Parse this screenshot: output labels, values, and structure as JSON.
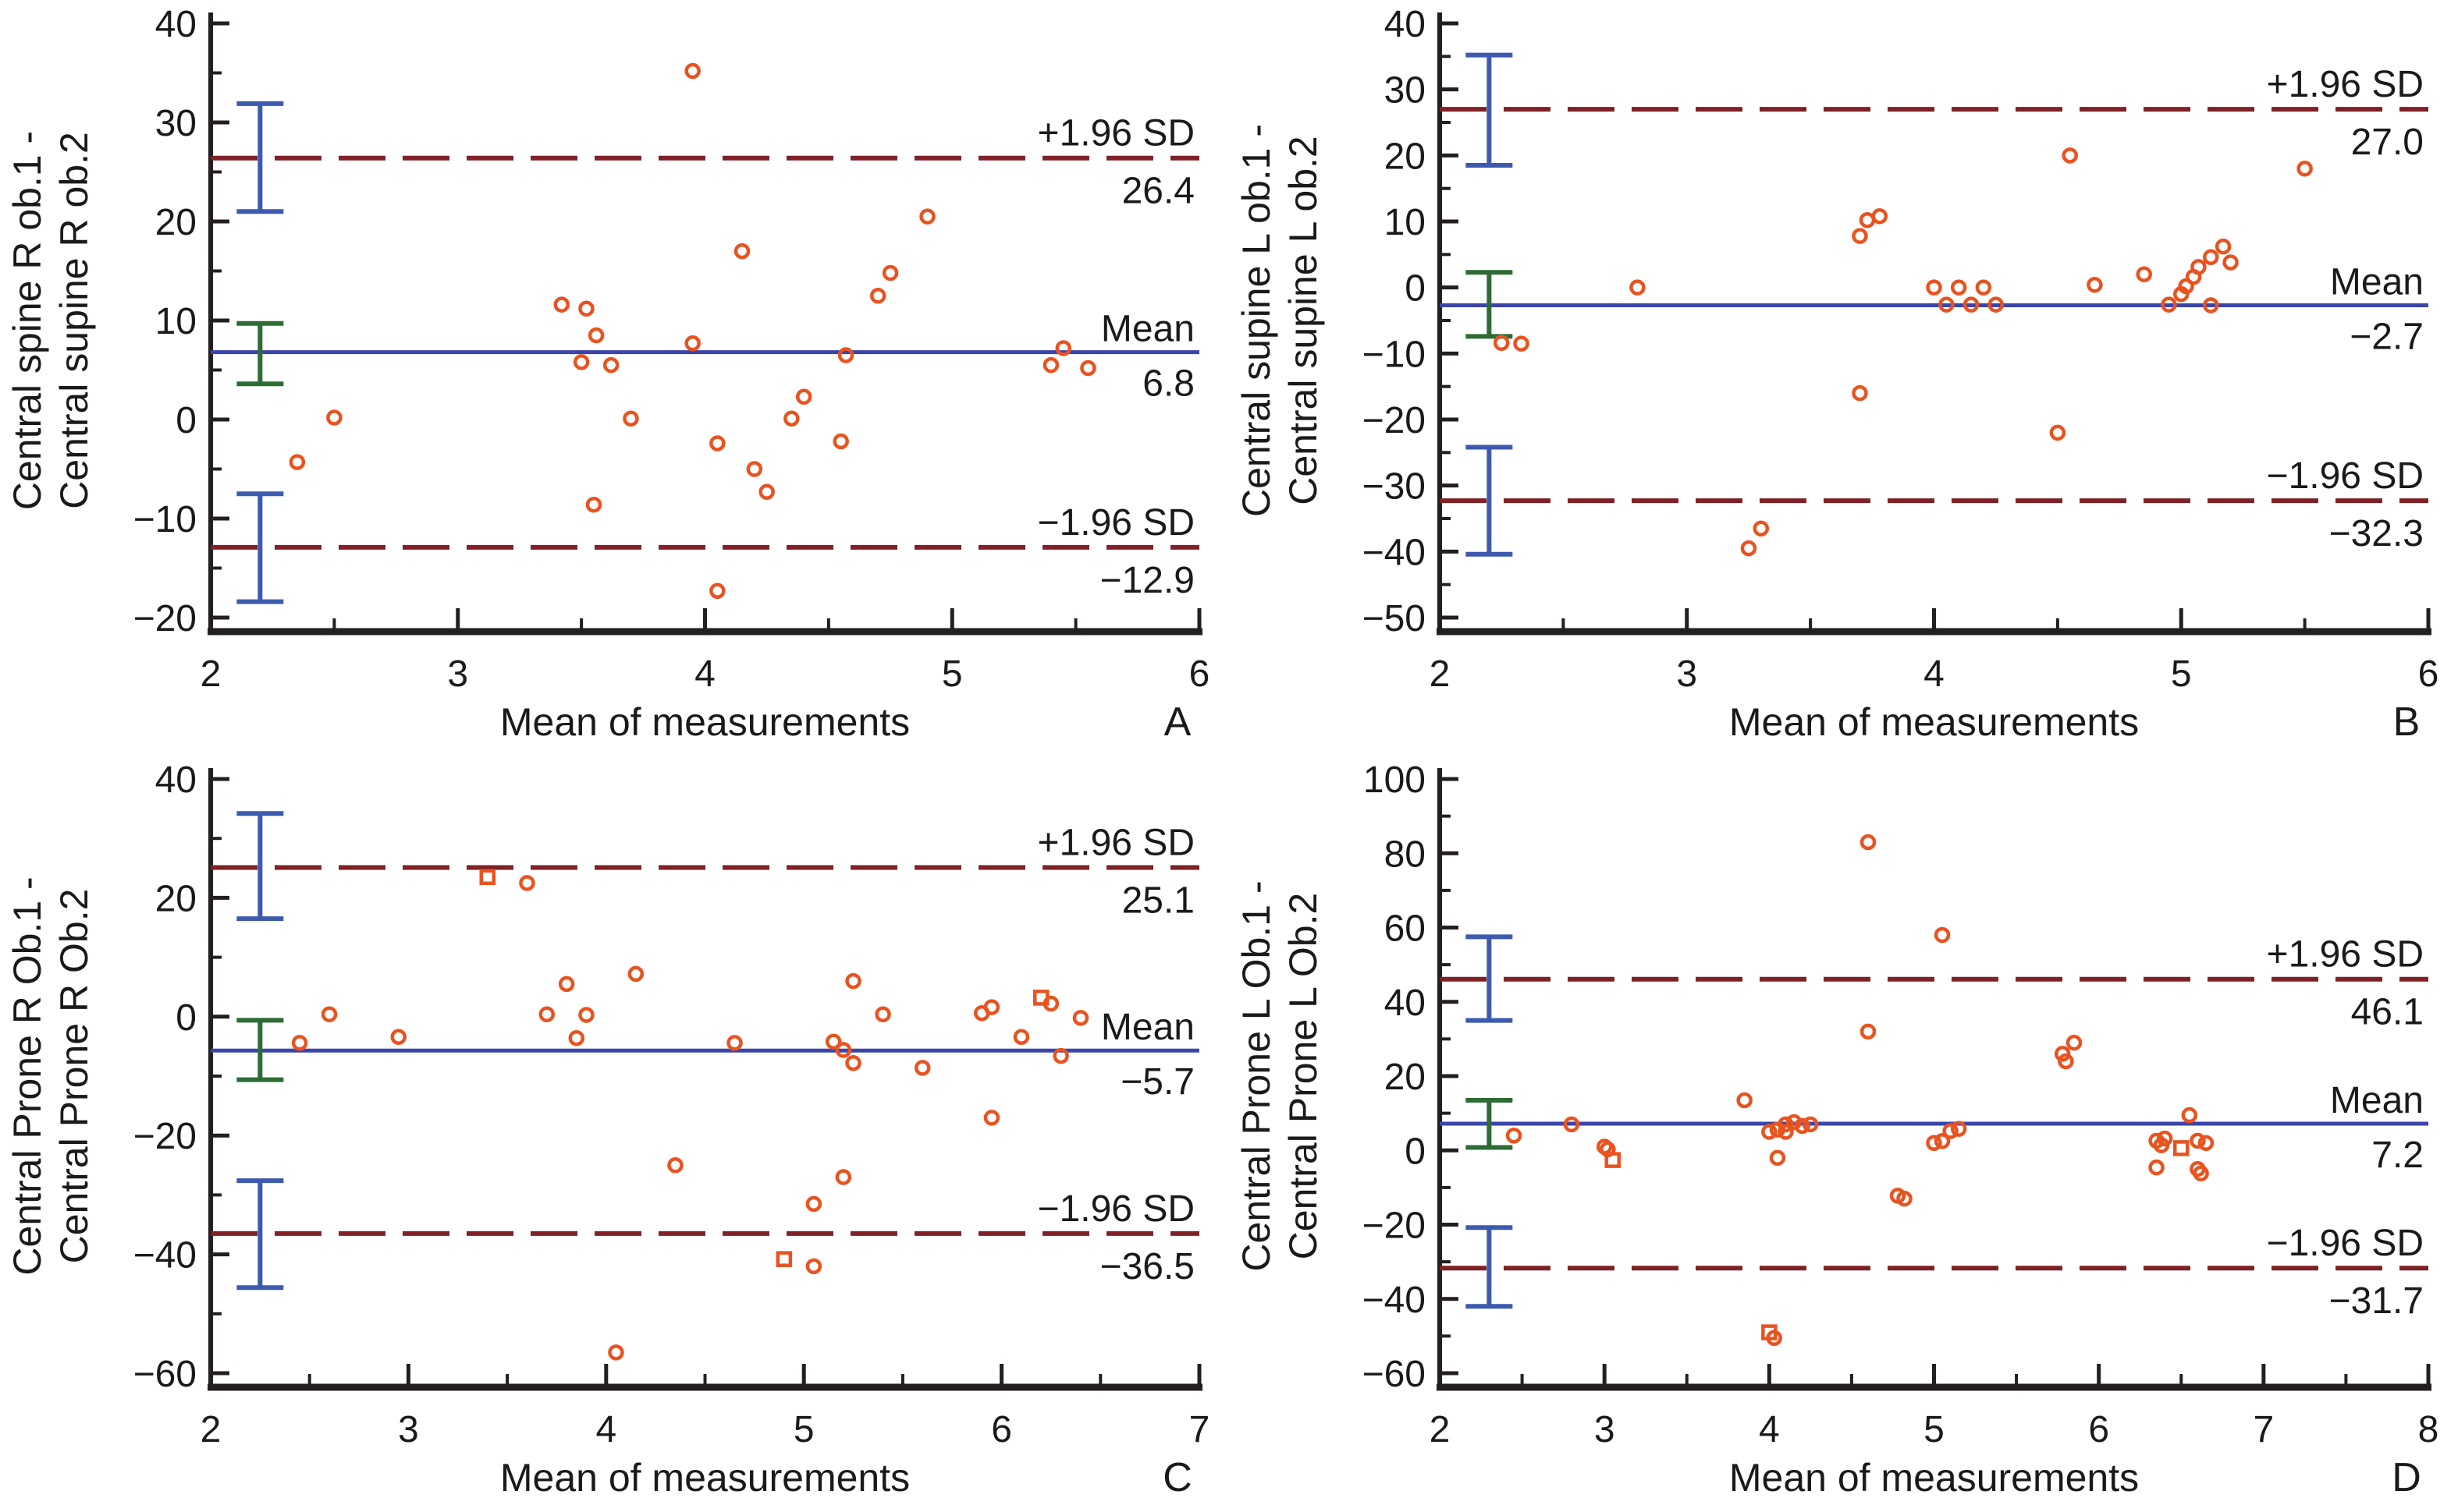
{
  "figure": {
    "colors": {
      "marker": "#e85320",
      "dashed_line": "#7f2125",
      "mean_line": "#3a45ac",
      "error_bar_blue": "#3d5aae",
      "error_bar_green": "#2e6b35",
      "axis": "#231f20",
      "text": "#1a1a1a"
    }
  },
  "chart_data": [
    {
      "type": "scatter",
      "letter": "A",
      "xlabel": "Mean of measurements",
      "ylabel_lines": [
        "Central spine R ob.1 -",
        "Central supine R ob.2"
      ],
      "xlim": [
        2,
        6
      ],
      "ylim": [
        -20,
        40
      ],
      "x_major": [
        {
          "v": 2,
          "l": "2"
        },
        {
          "v": 3,
          "l": "3"
        },
        {
          "v": 4,
          "l": "4"
        },
        {
          "v": 5,
          "l": "5"
        },
        {
          "v": 6,
          "l": "6"
        }
      ],
      "x_minor": [
        2.5,
        3.5,
        4.5,
        5.5
      ],
      "y_major": [
        {
          "v": -20,
          "l": "−20"
        },
        {
          "v": -10,
          "l": "−10"
        },
        {
          "v": 0,
          "l": "0"
        },
        {
          "v": 10,
          "l": "10"
        },
        {
          "v": 20,
          "l": "20"
        },
        {
          "v": 30,
          "l": "30"
        },
        {
          "v": 40,
          "l": "40"
        }
      ],
      "y_minor": [
        -15,
        -5,
        5,
        15,
        25,
        35
      ],
      "lines": {
        "upper": {
          "v": 26.4,
          "label": "+1.96 SD",
          "value_label": "26.4"
        },
        "mean": {
          "v": 6.8,
          "label": "Mean",
          "value_label": "6.8"
        },
        "lower": {
          "v": -12.9,
          "label": "−1.96 SD",
          "value_label": "−12.9"
        }
      },
      "error_bars": [
        {
          "x": 2.2,
          "lo": 21.0,
          "hi": 31.9,
          "color": "blue"
        },
        {
          "x": 2.2,
          "lo": 3.6,
          "hi": 9.7,
          "color": "green"
        },
        {
          "x": 2.2,
          "lo": -18.4,
          "hi": -7.5,
          "color": "blue"
        }
      ],
      "points": [
        [
          3.95,
          35.2
        ],
        [
          4.9,
          20.5
        ],
        [
          4.15,
          17
        ],
        [
          4.75,
          14.8
        ],
        [
          4.7,
          12.5
        ],
        [
          3.42,
          11.6
        ],
        [
          3.52,
          11.2
        ],
        [
          3.56,
          8.5
        ],
        [
          3.95,
          7.7
        ],
        [
          5.45,
          7.2
        ],
        [
          4.57,
          6.5
        ],
        [
          3.5,
          5.8
        ],
        [
          3.62,
          5.5
        ],
        [
          5.4,
          5.5
        ],
        [
          5.55,
          5.2
        ],
        [
          4.4,
          2.3
        ],
        [
          2.5,
          0.2
        ],
        [
          3.7,
          0.1
        ],
        [
          4.35,
          0.1
        ],
        [
          4.05,
          -2.4
        ],
        [
          4.55,
          -2.2
        ],
        [
          2.35,
          -4.3
        ],
        [
          4.2,
          -5.0
        ],
        [
          4.25,
          -7.3
        ],
        [
          3.55,
          -8.6
        ],
        [
          4.05,
          -17.3
        ]
      ],
      "square_points": []
    },
    {
      "type": "scatter",
      "letter": "B",
      "xlabel": "Mean of measurements",
      "ylabel_lines": [
        "Central supine L ob.1 -",
        "Central supine L ob.2"
      ],
      "xlim": [
        2,
        6
      ],
      "ylim": [
        -50,
        40
      ],
      "x_major": [
        {
          "v": 2,
          "l": "2"
        },
        {
          "v": 3,
          "l": "3"
        },
        {
          "v": 4,
          "l": "4"
        },
        {
          "v": 5,
          "l": "5"
        },
        {
          "v": 6,
          "l": "6"
        }
      ],
      "x_minor": [
        2.5,
        3.5,
        4.5,
        5.5
      ],
      "y_major": [
        {
          "v": -50,
          "l": "−50"
        },
        {
          "v": -40,
          "l": "−40"
        },
        {
          "v": -30,
          "l": "−30"
        },
        {
          "v": -20,
          "l": "−20"
        },
        {
          "v": -10,
          "l": "−10"
        },
        {
          "v": 0,
          "l": "0"
        },
        {
          "v": 10,
          "l": "10"
        },
        {
          "v": 20,
          "l": "20"
        },
        {
          "v": 30,
          "l": "30"
        },
        {
          "v": 40,
          "l": "40"
        }
      ],
      "y_minor": [
        -45,
        -35,
        -25,
        -15,
        -5,
        5,
        15,
        25,
        35
      ],
      "lines": {
        "upper": {
          "v": 27.0,
          "label": "+1.96 SD",
          "value_label": "27.0"
        },
        "mean": {
          "v": -2.7,
          "label": "Mean",
          "value_label": "−2.7"
        },
        "lower": {
          "v": -32.3,
          "label": "−1.96 SD",
          "value_label": "−32.3"
        }
      },
      "error_bars": [
        {
          "x": 2.2,
          "lo": 18.5,
          "hi": 35.2,
          "color": "blue"
        },
        {
          "x": 2.2,
          "lo": -7.4,
          "hi": 2.3,
          "color": "green"
        },
        {
          "x": 2.2,
          "lo": -40.4,
          "hi": -24.2,
          "color": "blue"
        }
      ],
      "points": [
        [
          4.55,
          20
        ],
        [
          5.5,
          18
        ],
        [
          3.78,
          10.8
        ],
        [
          3.73,
          10.2
        ],
        [
          3.7,
          7.8
        ],
        [
          5.17,
          6.2
        ],
        [
          5.12,
          4.6
        ],
        [
          5.2,
          3.8
        ],
        [
          5.07,
          3.1
        ],
        [
          4.85,
          2.0
        ],
        [
          5.05,
          1.6
        ],
        [
          2.8,
          0
        ],
        [
          4.0,
          0
        ],
        [
          4.1,
          0
        ],
        [
          4.2,
          0
        ],
        [
          4.65,
          0.4
        ],
        [
          5.02,
          0.2
        ],
        [
          5.0,
          -1.0
        ],
        [
          4.05,
          -2.6
        ],
        [
          4.15,
          -2.6
        ],
        [
          4.25,
          -2.6
        ],
        [
          4.95,
          -2.6
        ],
        [
          5.12,
          -2.7
        ],
        [
          2.25,
          -8.4
        ],
        [
          2.33,
          -8.5
        ],
        [
          3.7,
          -16
        ],
        [
          4.5,
          -22
        ],
        [
          3.3,
          -36.5
        ],
        [
          3.25,
          -39.5
        ]
      ],
      "square_points": []
    },
    {
      "type": "scatter",
      "letter": "C",
      "xlabel": "Mean of measurements",
      "ylabel_lines": [
        "Central Prone R Ob.1 -",
        "Central Prone R Ob.2"
      ],
      "xlim": [
        2,
        7
      ],
      "ylim": [
        -60,
        40
      ],
      "x_major": [
        {
          "v": 2,
          "l": "2"
        },
        {
          "v": 3,
          "l": "3"
        },
        {
          "v": 4,
          "l": "4"
        },
        {
          "v": 5,
          "l": "5"
        },
        {
          "v": 6,
          "l": "6"
        },
        {
          "v": 7,
          "l": "7"
        }
      ],
      "x_minor": [
        2.5,
        3.5,
        4.5,
        5.5,
        6.5
      ],
      "y_major": [
        {
          "v": -60,
          "l": "−60"
        },
        {
          "v": -40,
          "l": "−40"
        },
        {
          "v": -20,
          "l": "−20"
        },
        {
          "v": 0,
          "l": "0"
        },
        {
          "v": 20,
          "l": "20"
        },
        {
          "v": 40,
          "l": "40"
        }
      ],
      "y_minor": [
        -50,
        -30,
        -10,
        10,
        30
      ],
      "lines": {
        "upper": {
          "v": 25.1,
          "label": "+1.96 SD",
          "value_label": "25.1"
        },
        "mean": {
          "v": -5.7,
          "label": "Mean",
          "value_label": "−5.7"
        },
        "lower": {
          "v": -36.5,
          "label": "−1.96 SD",
          "value_label": "−36.5"
        }
      },
      "error_bars": [
        {
          "x": 2.25,
          "lo": 16.5,
          "hi": 34.2,
          "color": "blue"
        },
        {
          "x": 2.25,
          "lo": -10.6,
          "hi": -0.6,
          "color": "green"
        },
        {
          "x": 2.25,
          "lo": -45.6,
          "hi": -27.6,
          "color": "blue"
        }
      ],
      "points": [
        [
          3.6,
          22.5
        ],
        [
          4.15,
          7.2
        ],
        [
          5.25,
          6.0
        ],
        [
          3.8,
          5.5
        ],
        [
          6.25,
          2.2
        ],
        [
          5.95,
          1.6
        ],
        [
          5.9,
          0.6
        ],
        [
          2.6,
          0.4
        ],
        [
          3.7,
          0.4
        ],
        [
          3.9,
          0.3
        ],
        [
          5.4,
          0.4
        ],
        [
          6.4,
          -0.2
        ],
        [
          2.95,
          -3.4
        ],
        [
          3.85,
          -3.6
        ],
        [
          6.1,
          -3.4
        ],
        [
          2.45,
          -4.4
        ],
        [
          4.65,
          -4.4
        ],
        [
          5.15,
          -4.2
        ],
        [
          5.2,
          -5.6
        ],
        [
          6.3,
          -6.6
        ],
        [
          5.25,
          -7.8
        ],
        [
          5.6,
          -8.6
        ],
        [
          5.95,
          -17
        ],
        [
          4.35,
          -25
        ],
        [
          5.2,
          -27
        ],
        [
          5.05,
          -31.5
        ],
        [
          5.05,
          -42
        ],
        [
          4.05,
          -56.5
        ]
      ],
      "square_points": [
        [
          3.4,
          23.5
        ],
        [
          4.9,
          -40.8
        ],
        [
          6.2,
          3.2
        ]
      ]
    },
    {
      "type": "scatter",
      "letter": "D",
      "xlabel": "Mean of measurements",
      "ylabel_lines": [
        "Central Prone L Ob.1 -",
        "Central Prone L Ob.2"
      ],
      "xlim": [
        2,
        8
      ],
      "ylim": [
        -60,
        100
      ],
      "x_major": [
        {
          "v": 2,
          "l": "2"
        },
        {
          "v": 3,
          "l": "3"
        },
        {
          "v": 4,
          "l": "4"
        },
        {
          "v": 5,
          "l": "5"
        },
        {
          "v": 6,
          "l": "6"
        },
        {
          "v": 7,
          "l": "7"
        },
        {
          "v": 8,
          "l": "8"
        }
      ],
      "x_minor": [
        2.5,
        3.5,
        4.5,
        5.5,
        6.5,
        7.5
      ],
      "y_major": [
        {
          "v": -60,
          "l": "−60"
        },
        {
          "v": -40,
          "l": "−40"
        },
        {
          "v": -20,
          "l": "−20"
        },
        {
          "v": 0,
          "l": "0"
        },
        {
          "v": 20,
          "l": "20"
        },
        {
          "v": 40,
          "l": "40"
        },
        {
          "v": 60,
          "l": "60"
        },
        {
          "v": 80,
          "l": "80"
        },
        {
          "v": 100,
          "l": "100"
        }
      ],
      "y_minor": [
        -50,
        -30,
        -10,
        10,
        30,
        50,
        70,
        90
      ],
      "lines": {
        "upper": {
          "v": 46.1,
          "label": "+1.96 SD",
          "value_label": "46.1"
        },
        "mean": {
          "v": 7.2,
          "label": "Mean",
          "value_label": "7.2"
        },
        "lower": {
          "v": -31.7,
          "label": "−1.96 SD",
          "value_label": "−31.7"
        }
      },
      "error_bars": [
        {
          "x": 2.3,
          "lo": 35.0,
          "hi": 57.5,
          "color": "blue"
        },
        {
          "x": 2.3,
          "lo": 0.8,
          "hi": 13.5,
          "color": "green"
        },
        {
          "x": 2.3,
          "lo": -42.0,
          "hi": -20.8,
          "color": "blue"
        }
      ],
      "points": [
        [
          4.6,
          83
        ],
        [
          5.05,
          58
        ],
        [
          4.6,
          32
        ],
        [
          5.85,
          29
        ],
        [
          5.78,
          26
        ],
        [
          5.8,
          24
        ],
        [
          3.85,
          13.5
        ],
        [
          6.55,
          9.5
        ],
        [
          4.15,
          7.6
        ],
        [
          2.8,
          7.0
        ],
        [
          4.1,
          7.0
        ],
        [
          4.25,
          7.0
        ],
        [
          4.2,
          6.6
        ],
        [
          4.05,
          5.6
        ],
        [
          4.0,
          5.0
        ],
        [
          4.1,
          5.0
        ],
        [
          5.15,
          5.8
        ],
        [
          5.1,
          5.2
        ],
        [
          2.45,
          4.0
        ],
        [
          6.4,
          3.2
        ],
        [
          6.35,
          2.6
        ],
        [
          6.6,
          2.6
        ],
        [
          6.65,
          2.0
        ],
        [
          5.05,
          2.5
        ],
        [
          5.0,
          2.0
        ],
        [
          6.38,
          1.4
        ],
        [
          3.0,
          1.0
        ],
        [
          3.02,
          0.3
        ],
        [
          4.05,
          -2.0
        ],
        [
          6.35,
          -4.6
        ],
        [
          6.6,
          -5.0
        ],
        [
          6.62,
          -6.2
        ],
        [
          4.78,
          -12.2
        ],
        [
          4.82,
          -13.0
        ],
        [
          4.03,
          -50.5
        ]
      ],
      "square_points": [
        [
          3.05,
          -2.6
        ],
        [
          6.5,
          0.6
        ],
        [
          4.0,
          -49.0
        ]
      ]
    }
  ]
}
